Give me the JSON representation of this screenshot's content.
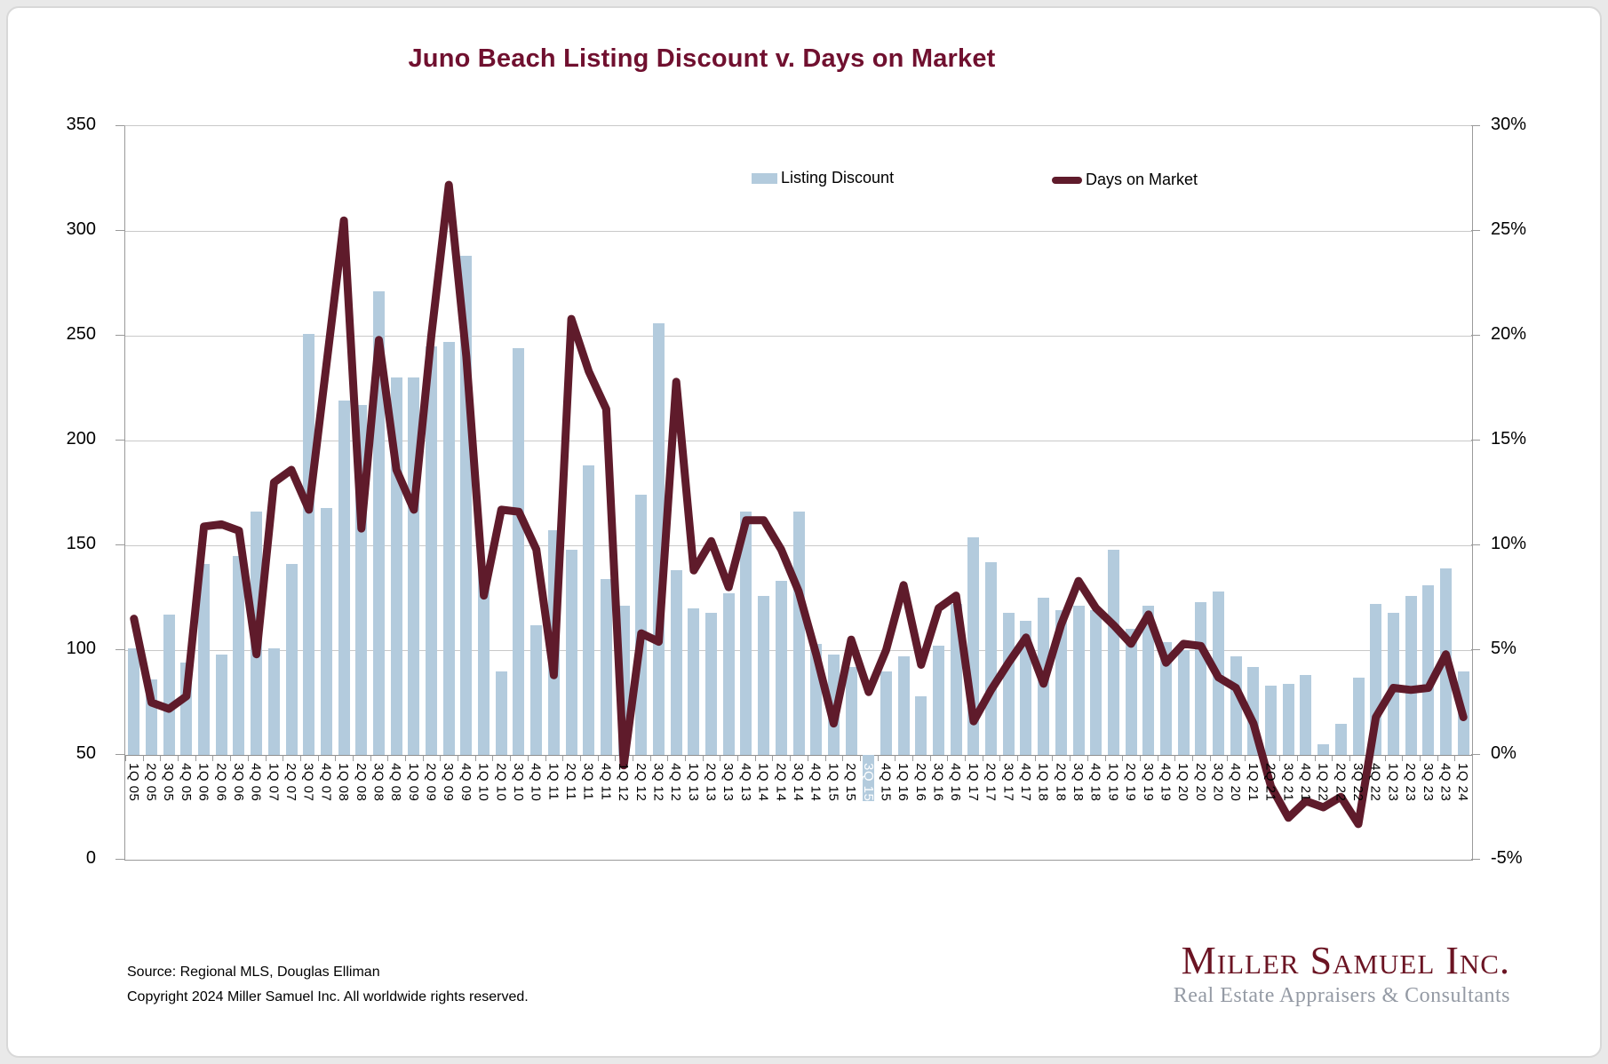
{
  "title": "Juno Beach Listing Discount v. Days on Market",
  "footer": {
    "source": "Source: Regional MLS, Douglas Elliman",
    "copyright": "Copyright 2024 Miller Samuel Inc. All worldwide rights reserved."
  },
  "logo": {
    "name": "Miller Samuel Inc.",
    "tagline": "Real Estate Appraisers & Consultants"
  },
  "colors": {
    "bar": "#b3cbdd",
    "line": "#5f1b2b",
    "title": "#70102f",
    "gridline": "#c9c9c9",
    "axis": "#9a9a9a",
    "logo_maroon": "#6b1423",
    "logo_gray": "#949aa4"
  },
  "chart_data": {
    "type": "combo",
    "title": "Juno Beach Listing Discount v. Days on Market",
    "categories": [
      "1Q 05",
      "2Q 05",
      "3Q 05",
      "4Q 05",
      "1Q 06",
      "2Q 06",
      "3Q 06",
      "4Q 06",
      "1Q 07",
      "2Q 07",
      "3Q 07",
      "4Q 07",
      "1Q 08",
      "2Q 08",
      "3Q 08",
      "4Q 08",
      "1Q 09",
      "2Q 09",
      "3Q 09",
      "4Q 09",
      "1Q 10",
      "2Q 10",
      "3Q 10",
      "4Q 10",
      "1Q 11",
      "2Q 11",
      "3Q 11",
      "4Q 11",
      "1Q 12",
      "2Q 12",
      "3Q 12",
      "4Q 12",
      "1Q 13",
      "2Q 13",
      "3Q 13",
      "4Q 13",
      "1Q 14",
      "2Q 14",
      "3Q 14",
      "4Q 14",
      "1Q 15",
      "2Q 15",
      "3Q 15",
      "4Q 15",
      "1Q 16",
      "2Q 16",
      "3Q 16",
      "4Q 16",
      "1Q 17",
      "2Q 17",
      "3Q 17",
      "4Q 17",
      "1Q 18",
      "2Q 18",
      "3Q 18",
      "4Q 18",
      "1Q 19",
      "2Q 19",
      "3Q 19",
      "4Q 19",
      "1Q 20",
      "2Q 20",
      "3Q 20",
      "4Q 20",
      "1Q 21",
      "2Q 21",
      "3Q 21",
      "4Q 21",
      "1Q 22",
      "2Q 22",
      "3Q 22",
      "4Q 22",
      "1Q 23",
      "2Q 23",
      "3Q 23",
      "4Q 23",
      "1Q 24"
    ],
    "series": [
      {
        "name": "Listing Discount",
        "type": "bar",
        "axis": "right",
        "unit": "percent",
        "values": [
          5.1,
          3.6,
          6.7,
          4.4,
          9.1,
          4.8,
          9.5,
          11.6,
          5.1,
          9.1,
          20.1,
          11.8,
          16.9,
          16.7,
          22.1,
          18.0,
          18.0,
          19.5,
          19.7,
          23.8,
          8.9,
          4.0,
          19.4,
          6.2,
          10.7,
          9.8,
          13.8,
          8.4,
          7.1,
          12.4,
          20.6,
          8.8,
          7.0,
          6.8,
          7.7,
          11.6,
          7.6,
          8.3,
          11.6,
          5.3,
          4.8,
          4.2,
          -2.2,
          4.0,
          4.7,
          2.8,
          5.2,
          7.2,
          10.4,
          9.2,
          6.8,
          6.4,
          7.5,
          6.9,
          7.1,
          6.9,
          9.8,
          6.0,
          7.1,
          5.4,
          5.0,
          7.3,
          7.8,
          4.7,
          4.2,
          3.3,
          3.4,
          3.8,
          0.5,
          1.5,
          3.7,
          7.2,
          6.8,
          7.6,
          8.1,
          8.9,
          4.0
        ]
      },
      {
        "name": "Days on Market",
        "type": "line",
        "axis": "left",
        "unit": "days",
        "values": [
          115,
          75,
          72,
          78,
          159,
          160,
          157,
          98,
          180,
          186,
          167,
          236,
          305,
          158,
          248,
          186,
          167,
          250,
          322,
          240,
          126,
          167,
          166,
          148,
          88,
          258,
          233,
          215,
          45,
          108,
          104,
          228,
          138,
          152,
          130,
          162,
          162,
          148,
          128,
          98,
          65,
          105,
          80,
          100,
          131,
          93,
          120,
          126,
          66,
          81,
          94,
          106,
          84,
          112,
          133,
          120,
          112,
          103,
          117,
          94,
          103,
          102,
          87,
          82,
          65,
          35,
          20,
          28,
          25,
          30,
          17,
          68,
          82,
          81,
          82,
          98,
          68
        ]
      }
    ],
    "left_axis": {
      "min": 0,
      "max": 350,
      "tick_labels": [
        "350",
        "300",
        "250",
        "200",
        "150",
        "100",
        "50",
        "0"
      ]
    },
    "right_axis": {
      "min": -5,
      "max": 30,
      "tick_labels": [
        "30%",
        "25%",
        "20%",
        "15%",
        "10%",
        "5%",
        "0%",
        "-5%"
      ]
    },
    "layout": {
      "grid": true,
      "legend_position": "top-inside",
      "x_labels_rotated": true,
      "bars_cross_at": "0%"
    }
  }
}
